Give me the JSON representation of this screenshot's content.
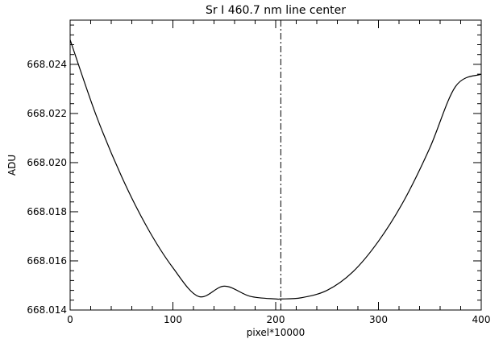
{
  "chart_data": {
    "type": "line",
    "title": "Sr I 460.7 nm line center",
    "xlabel": "pixel*10000",
    "ylabel": "ADU",
    "xlim": [
      0,
      400
    ],
    "ylim": [
      668.014,
      668.0258
    ],
    "xticks": [
      0,
      100,
      200,
      300,
      400
    ],
    "xtick_labels": [
      "0",
      "100",
      "200",
      "300",
      "400"
    ],
    "yticks": [
      668.014,
      668.016,
      668.018,
      668.02,
      668.022,
      668.024
    ],
    "ytick_labels": [
      "668.014",
      "668.016",
      "668.018",
      "668.020",
      "668.022",
      "668.024"
    ],
    "grid": false,
    "series": [
      {
        "name": "",
        "style": "solid",
        "color": "#000000",
        "x": [
          0,
          25,
          50,
          75,
          100,
          125,
          150,
          175,
          200,
          205,
          225,
          250,
          275,
          300,
          325,
          350,
          375,
          400
        ],
        "y": [
          668.025,
          668.02196,
          668.01944,
          668.01736,
          668.01572,
          668.01455,
          668.01497,
          668.01456,
          668.01445,
          668.01445,
          668.0145,
          668.0148,
          668.01555,
          668.0168,
          668.01847,
          668.0206,
          668.0231,
          668.0236
        ]
      }
    ],
    "vlines": [
      {
        "x": 205,
        "style": "dash-dot",
        "color": "#000000"
      }
    ]
  }
}
